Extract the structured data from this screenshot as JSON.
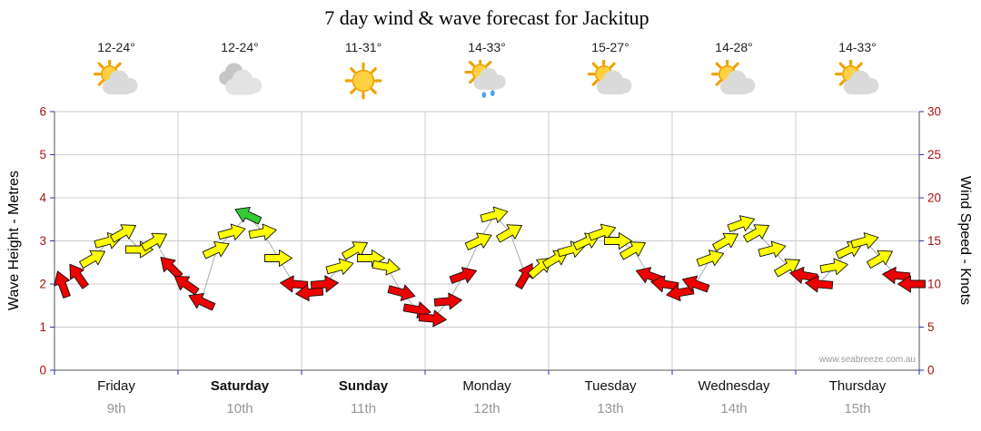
{
  "title": "7 day wind & wave forecast for Jackitup",
  "watermark": "www.seabreeze.com.au",
  "days": [
    {
      "name": "Friday",
      "date": "9th",
      "temp": "12-24°",
      "icon": "sun-cloud",
      "bold": false
    },
    {
      "name": "Saturday",
      "date": "10th",
      "temp": "12-24°",
      "icon": "cloudy",
      "bold": true
    },
    {
      "name": "Sunday",
      "date": "11th",
      "temp": "11-31°",
      "icon": "sunny",
      "bold": true
    },
    {
      "name": "Monday",
      "date": "12th",
      "temp": "14-33°",
      "icon": "sun-cloud-rain",
      "bold": false
    },
    {
      "name": "Tuesday",
      "date": "13th",
      "temp": "15-27°",
      "icon": "sun-cloud",
      "bold": false
    },
    {
      "name": "Wednesday",
      "date": "14th",
      "temp": "14-28°",
      "icon": "sun-cloud",
      "bold": false
    },
    {
      "name": "Thursday",
      "date": "15th",
      "temp": "14-33°",
      "icon": "sun-cloud",
      "bold": false
    }
  ],
  "chart_data": {
    "type": "scatter",
    "subtype": "wind-arrow-forecast",
    "x_categories": [
      "Friday",
      "Saturday",
      "Sunday",
      "Monday",
      "Tuesday",
      "Wednesday",
      "Thursday"
    ],
    "slots_per_day": 8,
    "y_left": {
      "label": "Wave Height - Metres",
      "range": [
        0,
        6
      ],
      "ticks": [
        0,
        1,
        2,
        3,
        4,
        5,
        6
      ]
    },
    "y_right": {
      "label": "Wind Speed - Knots",
      "range": [
        0,
        30
      ],
      "ticks": [
        0,
        5,
        10,
        15,
        20,
        25,
        30
      ]
    },
    "colors": {
      "r": "#ee0000",
      "y": "#ffff00",
      "g": "#33cc33"
    },
    "arrow_format": [
      "day_index",
      "slot_index",
      "wind_knots",
      "direction_deg_css",
      "color_key"
    ],
    "arrows": [
      [
        0,
        0,
        10,
        250,
        "r"
      ],
      [
        0,
        1,
        11,
        235,
        "r"
      ],
      [
        0,
        2,
        13,
        330,
        "y"
      ],
      [
        0,
        3,
        15,
        345,
        "y"
      ],
      [
        0,
        4,
        16,
        330,
        "y"
      ],
      [
        0,
        5,
        14,
        0,
        "y"
      ],
      [
        0,
        6,
        15,
        330,
        "y"
      ],
      [
        0,
        7,
        12,
        225,
        "r"
      ],
      [
        1,
        0,
        10,
        215,
        "r"
      ],
      [
        1,
        1,
        8,
        205,
        "r"
      ],
      [
        1,
        2,
        14,
        335,
        "y"
      ],
      [
        1,
        3,
        16,
        345,
        "y"
      ],
      [
        1,
        4,
        18,
        205,
        "g"
      ],
      [
        1,
        5,
        16,
        350,
        "y"
      ],
      [
        1,
        6,
        13,
        0,
        "y"
      ],
      [
        1,
        7,
        10,
        185,
        "r"
      ],
      [
        2,
        0,
        9,
        175,
        "r"
      ],
      [
        2,
        1,
        10,
        355,
        "r"
      ],
      [
        2,
        2,
        12,
        345,
        "y"
      ],
      [
        2,
        3,
        14,
        330,
        "y"
      ],
      [
        2,
        4,
        13,
        0,
        "y"
      ],
      [
        2,
        5,
        12,
        10,
        "y"
      ],
      [
        2,
        6,
        9,
        15,
        "r"
      ],
      [
        2,
        7,
        7,
        10,
        "r"
      ],
      [
        3,
        0,
        6,
        5,
        "r"
      ],
      [
        3,
        1,
        8,
        355,
        "r"
      ],
      [
        3,
        2,
        11,
        340,
        "r"
      ],
      [
        3,
        3,
        15,
        335,
        "y"
      ],
      [
        3,
        4,
        18,
        345,
        "y"
      ],
      [
        3,
        5,
        16,
        330,
        "y"
      ],
      [
        3,
        6,
        11,
        300,
        "r"
      ],
      [
        3,
        7,
        12,
        320,
        "y"
      ],
      [
        4,
        0,
        13,
        330,
        "y"
      ],
      [
        4,
        1,
        14,
        345,
        "y"
      ],
      [
        4,
        2,
        15,
        335,
        "y"
      ],
      [
        4,
        3,
        16,
        340,
        "y"
      ],
      [
        4,
        4,
        15,
        0,
        "y"
      ],
      [
        4,
        5,
        14,
        330,
        "y"
      ],
      [
        4,
        6,
        11,
        200,
        "r"
      ],
      [
        4,
        7,
        10,
        190,
        "r"
      ],
      [
        5,
        0,
        9,
        170,
        "r"
      ],
      [
        5,
        1,
        10,
        200,
        "r"
      ],
      [
        5,
        2,
        13,
        340,
        "y"
      ],
      [
        5,
        3,
        15,
        330,
        "y"
      ],
      [
        5,
        4,
        17,
        340,
        "y"
      ],
      [
        5,
        5,
        16,
        330,
        "y"
      ],
      [
        5,
        6,
        14,
        345,
        "y"
      ],
      [
        5,
        7,
        12,
        330,
        "y"
      ],
      [
        6,
        0,
        11,
        190,
        "r"
      ],
      [
        6,
        1,
        10,
        185,
        "r"
      ],
      [
        6,
        2,
        12,
        350,
        "y"
      ],
      [
        6,
        3,
        14,
        335,
        "y"
      ],
      [
        6,
        4,
        15,
        345,
        "y"
      ],
      [
        6,
        5,
        13,
        330,
        "y"
      ],
      [
        6,
        6,
        11,
        185,
        "r"
      ],
      [
        6,
        7,
        10,
        180,
        "r"
      ]
    ]
  }
}
